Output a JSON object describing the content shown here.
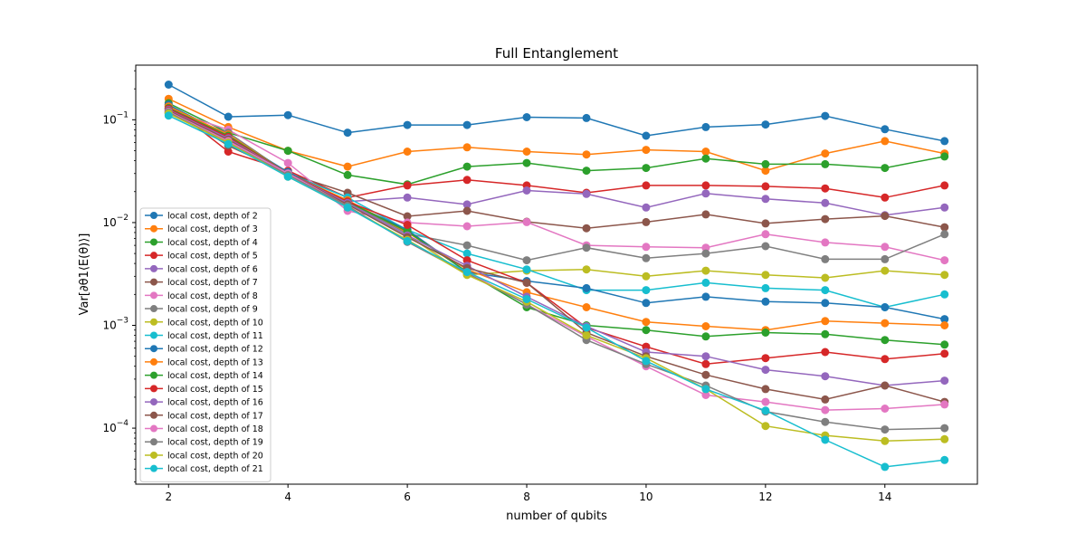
{
  "chart_data": {
    "type": "line",
    "title": "Full Entanglement",
    "xlabel": "number of qubits",
    "ylabel": "Var[∂θ1⟨E(θ)⟩]",
    "xlim": [
      1.45,
      15.55
    ],
    "ylim": [
      2.85e-05,
      0.34
    ],
    "yscale": "log",
    "xticks": [
      2,
      4,
      6,
      8,
      10,
      12,
      14
    ],
    "yticks": [
      0.0001,
      0.001,
      0.01,
      0.1
    ],
    "ytick_labels": [
      [
        "10",
        "−4"
      ],
      [
        "10",
        "−3"
      ],
      [
        "10",
        "−2"
      ],
      [
        "10",
        "−1"
      ]
    ],
    "legend_position": "lower-left",
    "grid": false,
    "x": [
      2,
      3,
      4,
      5,
      6,
      7,
      8,
      9,
      10,
      11,
      12,
      13,
      14,
      15
    ],
    "series": [
      {
        "name": "local cost, depth of 2",
        "color": "#1f77b4",
        "values": [
          0.22,
          0.107,
          0.111,
          0.075,
          0.089,
          0.089,
          0.106,
          0.104,
          0.07,
          0.085,
          0.09,
          0.109,
          0.081,
          0.062
        ]
      },
      {
        "name": "local cost, depth of 3",
        "color": "#ff7f0e",
        "values": [
          0.16,
          0.085,
          0.05,
          0.035,
          0.049,
          0.054,
          0.049,
          0.046,
          0.051,
          0.049,
          0.032,
          0.047,
          0.062,
          0.047
        ]
      },
      {
        "name": "local cost, depth of 4",
        "color": "#2ca02c",
        "values": [
          0.145,
          0.075,
          0.05,
          0.029,
          0.0235,
          0.035,
          0.038,
          0.032,
          0.034,
          0.042,
          0.037,
          0.037,
          0.034,
          0.044
        ]
      },
      {
        "name": "local cost, depth of 5",
        "color": "#d62728",
        "values": [
          0.14,
          0.049,
          0.032,
          0.0175,
          0.023,
          0.026,
          0.023,
          0.0195,
          0.023,
          0.023,
          0.0225,
          0.0215,
          0.0175,
          0.023
        ]
      },
      {
        "name": "local cost, depth of 6",
        "color": "#9467bd",
        "values": [
          0.135,
          0.06,
          0.031,
          0.016,
          0.0175,
          0.015,
          0.0205,
          0.019,
          0.014,
          0.0192,
          0.017,
          0.0155,
          0.0118,
          0.014
        ]
      },
      {
        "name": "local cost, depth of 7",
        "color": "#8c564b",
        "values": [
          0.13,
          0.056,
          0.03,
          0.0195,
          0.0115,
          0.013,
          0.0102,
          0.0088,
          0.0101,
          0.012,
          0.0098,
          0.0108,
          0.0116,
          0.009
        ]
      },
      {
        "name": "local cost, depth of 8",
        "color": "#e377c2",
        "values": [
          0.125,
          0.08,
          0.038,
          0.013,
          0.01,
          0.0092,
          0.0101,
          0.006,
          0.0058,
          0.0057,
          0.0077,
          0.0064,
          0.0058,
          0.0043
        ]
      },
      {
        "name": "local cost, depth of 9",
        "color": "#7f7f7f",
        "values": [
          0.12,
          0.075,
          0.03,
          0.016,
          0.0078,
          0.006,
          0.0043,
          0.0057,
          0.0045,
          0.005,
          0.0059,
          0.0044,
          0.0044,
          0.0077
        ]
      },
      {
        "name": "local cost, depth of 10",
        "color": "#bcbd22",
        "values": [
          0.118,
          0.07,
          0.03,
          0.015,
          0.0075,
          0.0031,
          0.0034,
          0.0035,
          0.003,
          0.0034,
          0.0031,
          0.0029,
          0.0034,
          0.0031
        ]
      },
      {
        "name": "local cost, depth of 11",
        "color": "#17becf",
        "values": [
          0.115,
          0.068,
          0.03,
          0.0175,
          0.0085,
          0.005,
          0.0035,
          0.0022,
          0.0022,
          0.0026,
          0.0023,
          0.0022,
          0.0015,
          0.002
        ]
      },
      {
        "name": "local cost, depth of 12",
        "color": "#1f77b4",
        "values": [
          0.14,
          0.07,
          0.031,
          0.016,
          0.0085,
          0.0033,
          0.0027,
          0.0023,
          0.00165,
          0.0019,
          0.0017,
          0.00165,
          0.0015,
          0.00115
        ]
      },
      {
        "name": "local cost, depth of 13",
        "color": "#ff7f0e",
        "values": [
          0.135,
          0.072,
          0.03,
          0.0165,
          0.008,
          0.0035,
          0.0021,
          0.0015,
          0.00108,
          0.00098,
          0.0009,
          0.0011,
          0.00105,
          0.001
        ]
      },
      {
        "name": "local cost, depth of 14",
        "color": "#2ca02c",
        "values": [
          0.13,
          0.07,
          0.03,
          0.016,
          0.0082,
          0.0033,
          0.0015,
          0.001,
          0.0009,
          0.00078,
          0.00085,
          0.00082,
          0.00072,
          0.00065
        ]
      },
      {
        "name": "local cost, depth of 15",
        "color": "#d62728",
        "values": [
          0.128,
          0.068,
          0.03,
          0.016,
          0.0095,
          0.0043,
          0.0026,
          0.00095,
          0.00062,
          0.00042,
          0.00048,
          0.00055,
          0.00047,
          0.00053
        ]
      },
      {
        "name": "local cost, depth of 16",
        "color": "#9467bd",
        "values": [
          0.125,
          0.066,
          0.03,
          0.0155,
          0.0075,
          0.0038,
          0.0019,
          0.00098,
          0.00055,
          0.0005,
          0.00037,
          0.00032,
          0.00026,
          0.00029
        ]
      },
      {
        "name": "local cost, depth of 17",
        "color": "#8c564b",
        "values": [
          0.123,
          0.064,
          0.03,
          0.015,
          0.0072,
          0.0036,
          0.0026,
          0.00085,
          0.0005,
          0.00033,
          0.00024,
          0.00019,
          0.00026,
          0.00018
        ]
      },
      {
        "name": "local cost, depth of 18",
        "color": "#e377c2",
        "values": [
          0.12,
          0.062,
          0.03,
          0.0145,
          0.0065,
          0.0033,
          0.0016,
          0.00078,
          0.0004,
          0.00021,
          0.00018,
          0.00015,
          0.000155,
          0.00017
        ]
      },
      {
        "name": "local cost, depth of 19",
        "color": "#7f7f7f",
        "values": [
          0.118,
          0.06,
          0.029,
          0.0145,
          0.0065,
          0.0032,
          0.0016,
          0.00072,
          0.00042,
          0.00026,
          0.000145,
          0.000115,
          9.7e-05,
          0.0001
        ]
      },
      {
        "name": "local cost, depth of 20",
        "color": "#bcbd22",
        "values": [
          0.115,
          0.06,
          0.028,
          0.014,
          0.0068,
          0.0031,
          0.0017,
          0.0008,
          0.00048,
          0.00024,
          0.000105,
          8.5e-05,
          7.5e-05,
          7.8e-05
        ]
      },
      {
        "name": "local cost, depth of 21",
        "color": "#17becf",
        "values": [
          0.11,
          0.058,
          0.028,
          0.014,
          0.0066,
          0.0033,
          0.0018,
          0.00095,
          0.00045,
          0.00024,
          0.000148,
          7.7e-05,
          4.2e-05,
          4.9e-05
        ]
      }
    ]
  }
}
